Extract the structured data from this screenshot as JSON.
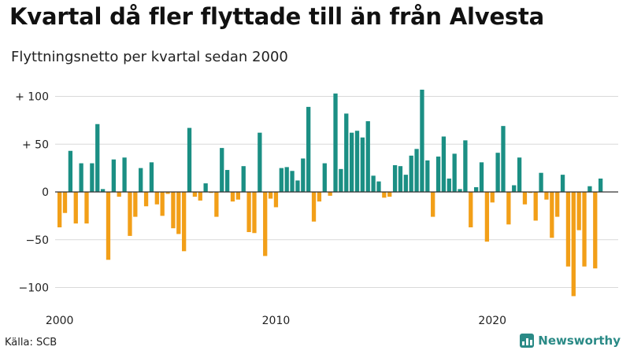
{
  "title": "Kvartal då fler flyttade till än från Alvesta",
  "subtitle": "Flyttningsnetto per kvartal sedan 2000",
  "source": "Källa: SCB",
  "brand": "Newsworthy",
  "colors": {
    "positive": "#1b8f84",
    "negative": "#f29f18",
    "brand": "#2a8a86"
  },
  "chart_data": {
    "type": "bar",
    "x_start": "2000 Q1",
    "x_ticks": [
      "2000",
      "2010",
      "2020"
    ],
    "y_ticks": [
      "+ 100",
      "+  50",
      "0",
      "−50",
      "−100"
    ],
    "y_tick_values": [
      100,
      50,
      0,
      -50,
      -100
    ],
    "ylim": [
      -110,
      110
    ],
    "values": [
      -37,
      -22,
      43,
      -33,
      30,
      -33,
      30,
      71,
      3,
      -71,
      34,
      -5,
      36,
      -46,
      -26,
      25,
      -15,
      31,
      -13,
      -25,
      -2,
      -38,
      -44,
      -62,
      67,
      -5,
      -9,
      9,
      -1,
      -26,
      46,
      23,
      -10,
      -8,
      27,
      -42,
      -43,
      62,
      -67,
      -7,
      -16,
      25,
      26,
      22,
      12,
      35,
      89,
      -31,
      -10,
      30,
      -4,
      103,
      24,
      82,
      62,
      64,
      57,
      74,
      17,
      11,
      -6,
      -5,
      28,
      27,
      18,
      38,
      45,
      107,
      33,
      -26,
      37,
      58,
      14,
      40,
      3,
      54,
      -37,
      5,
      31,
      -52,
      -11,
      41,
      69,
      -34,
      7,
      36,
      -13,
      -1,
      -30,
      20,
      -8,
      -48,
      -26,
      18,
      -78,
      -109,
      -40,
      -78,
      6,
      -80,
      14
    ]
  }
}
